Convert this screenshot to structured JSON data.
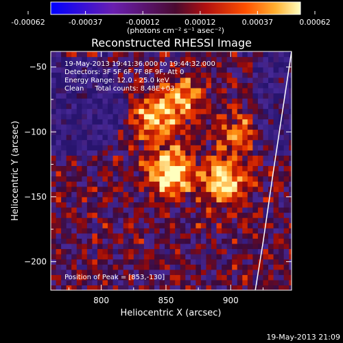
{
  "chart_data": {
    "type": "heatmap",
    "title": "Reconstructed RHESSI Image",
    "xlabel": "Heliocentric X (arcsec)",
    "ylabel": "Heliocentric Y (arcsec)",
    "xlim": [
      761,
      947
    ],
    "ylim": [
      -222,
      -38
    ],
    "xticks": [
      800,
      850,
      900
    ],
    "yticks": [
      -50,
      -100,
      -150,
      -200
    ],
    "colorbar": {
      "label": "(photons cm⁻² s⁻¹ asec⁻²)",
      "ticks": [
        "-0.00062",
        "-0.00037",
        "-0.00012",
        "0.00012",
        "0.00037",
        "0.00062"
      ],
      "range": [
        -0.00062,
        0.00062
      ]
    },
    "annotations": [
      "19-May-2013 19:41:36.000 to 19:44:32.000",
      "Detectors: 3F 5F 6F 7F 8F 9F, Att 0",
      "Energy Range: 12.0 - 25.0 keV",
      "Clean     Total counts: 8.48E+03"
    ],
    "peak_label": "Position of Peak = [853,-130]",
    "peak": {
      "x": 853,
      "y": -130
    },
    "bright_sources": [
      {
        "x": 853,
        "y": -130,
        "level": 1.0
      },
      {
        "x": 895,
        "y": -138,
        "level": 0.9
      },
      {
        "x": 840,
        "y": -90,
        "level": 0.7
      },
      {
        "x": 862,
        "y": -75,
        "level": 0.6
      },
      {
        "x": 905,
        "y": -100,
        "level": 0.45
      }
    ],
    "limb_curve": [
      [
        947,
        -38
      ],
      [
        933,
        -130
      ],
      [
        925,
        -185
      ],
      [
        919,
        -222
      ]
    ]
  },
  "footer": {
    "timestamp": "19-May-2013 21:09"
  },
  "colors": {
    "background": "#000000",
    "text": "#ffffff"
  }
}
